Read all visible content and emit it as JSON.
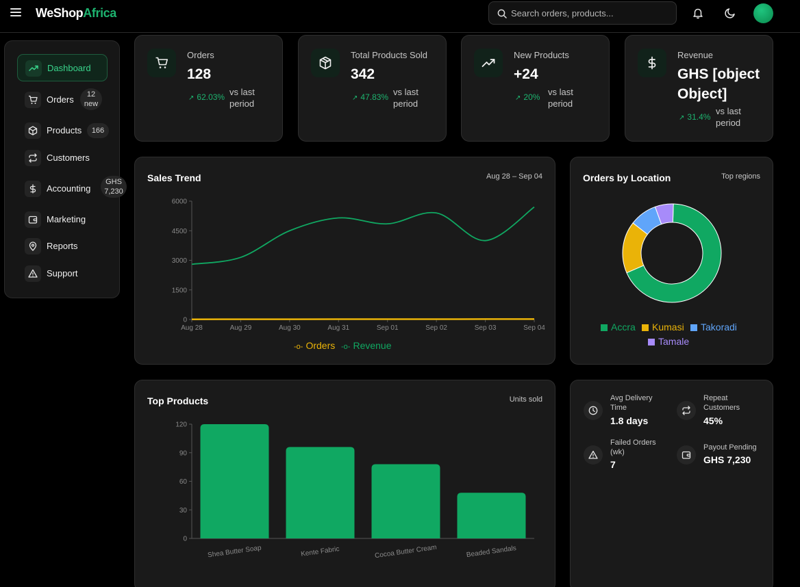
{
  "header": {
    "brand_part1": "WeShop",
    "brand_part2": "Africa",
    "search_placeholder": "Search orders, products..."
  },
  "colors": {
    "accent": "#10a862",
    "orders": "#eab308",
    "kumasi": "#eab308",
    "takoradi": "#60a5fa",
    "tamale": "#a78bfa",
    "background": "#000000",
    "card": "#1a1a1a"
  },
  "sidebar": {
    "items": [
      {
        "label": "Dashboard",
        "icon": "trending-up-icon"
      },
      {
        "label": "Orders",
        "icon": "cart-icon",
        "badge_line1": "12",
        "badge_line2": "new"
      },
      {
        "label": "Products",
        "icon": "box-icon",
        "badge": "166"
      },
      {
        "label": "Customers",
        "icon": "repeat-icon"
      },
      {
        "label": "Accounting",
        "icon": "dollar-icon",
        "badge_line1": "GHS",
        "badge_line2": "7,230"
      },
      {
        "label": "Marketing",
        "icon": "wallet-icon"
      },
      {
        "label": "Reports",
        "icon": "location-pin-icon"
      },
      {
        "label": "Support",
        "icon": "warning-icon"
      }
    ]
  },
  "stats": [
    {
      "label": "Orders",
      "value": "128",
      "change": "62.03%",
      "period_line1": "vs last",
      "period_line2": "period"
    },
    {
      "label": "Total Products Sold",
      "value": "342",
      "change": "47.83%",
      "period_line1": "vs last",
      "period_line2": "period"
    },
    {
      "label": "New Products",
      "value": "+24",
      "change": "20%",
      "period_line1": "vs last",
      "period_line2": "period"
    },
    {
      "label": "Revenue",
      "value_line1": "GHS [object",
      "value_line2": "Object]",
      "change": "31.4%",
      "period_line1": "vs last",
      "period_line2": "period"
    }
  ],
  "sales_trend": {
    "title": "Sales Trend",
    "range": "Aug 28 – Sep 04"
  },
  "location": {
    "title": "Orders by Location",
    "subtitle": "Top regions"
  },
  "top_products": {
    "title": "Top Products",
    "subtitle": "Units sold"
  },
  "metrics": [
    {
      "label_line1": "Avg Delivery",
      "label_line2": "Time",
      "value": "1.8 days",
      "icon": "clock-icon"
    },
    {
      "label_line1": "Repeat",
      "label_line2": "Customers",
      "value": "45%",
      "icon": "repeat-icon"
    },
    {
      "label_line1": "Failed Orders",
      "label_line2": "(wk)",
      "value": "7",
      "icon": "warning-icon"
    },
    {
      "label_line1": "Payout Pending",
      "label_line2": "",
      "value": "GHS 7,230",
      "icon": "wallet-icon"
    }
  ],
  "chart_data": [
    {
      "type": "line",
      "title": "Sales Trend",
      "x": [
        "Aug 28",
        "Aug 29",
        "Aug 30",
        "Aug 31",
        "Sep 01",
        "Sep 02",
        "Sep 03",
        "Sep 04"
      ],
      "series": [
        {
          "name": "Orders",
          "color": "#eab308",
          "values": [
            10,
            12,
            14,
            16,
            17,
            18,
            20,
            22
          ]
        },
        {
          "name": "Revenue",
          "color": "#10a862",
          "values": [
            2800,
            3150,
            4500,
            5150,
            4850,
            5400,
            4000,
            5700
          ]
        }
      ],
      "ylim": [
        0,
        6000
      ],
      "yticks": [
        0,
        1500,
        3000,
        4500,
        6000
      ],
      "legend": "bottom"
    },
    {
      "type": "pie",
      "title": "Orders by Location",
      "labels": [
        "Accra",
        "Kumasi",
        "Takoradi",
        "Tamale"
      ],
      "values": [
        68,
        17,
        9,
        6
      ],
      "colors": [
        "#10a862",
        "#eab308",
        "#60a5fa",
        "#a78bfa"
      ],
      "legend": "bottom"
    },
    {
      "type": "bar",
      "title": "Top Products",
      "categories": [
        "Shea Butter Soap",
        "Kente Fabric",
        "Cocoa Butter Cream",
        "Beaded Sandals"
      ],
      "values": [
        120,
        96,
        78,
        48
      ],
      "ylim": [
        0,
        120
      ],
      "yticks": [
        0,
        30,
        60,
        90,
        120
      ],
      "color": "#10a862"
    }
  ]
}
